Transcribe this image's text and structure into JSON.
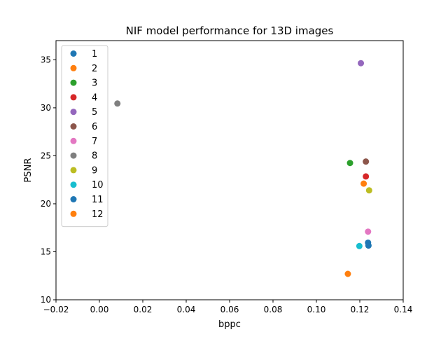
{
  "chart_data": {
    "type": "scatter",
    "title": "NIF model performance for 13D images",
    "xlabel": "bppc",
    "ylabel": "PSNR",
    "xlim": [
      -0.02,
      0.14
    ],
    "ylim": [
      10,
      37
    ],
    "xticks": [
      -0.02,
      0.0,
      0.02,
      0.04,
      0.06,
      0.08,
      0.1,
      0.12,
      0.14
    ],
    "xtick_labels": [
      "−0.02",
      "0.00",
      "0.02",
      "0.04",
      "0.06",
      "0.08",
      "0.10",
      "0.12",
      "0.14"
    ],
    "yticks": [
      10,
      15,
      20,
      25,
      30,
      35
    ],
    "ytick_labels": [
      "10",
      "15",
      "20",
      "25",
      "30",
      "35"
    ],
    "grid": false,
    "legend_position": "top-left",
    "series": [
      {
        "name": "1",
        "color": "#1f77b4",
        "x": 0.1238,
        "y": 15.95
      },
      {
        "name": "2",
        "color": "#ff7f0e",
        "x": 0.1218,
        "y": 22.1
      },
      {
        "name": "3",
        "color": "#2ca02c",
        "x": 0.1155,
        "y": 24.25
      },
      {
        "name": "4",
        "color": "#d62728",
        "x": 0.1228,
        "y": 22.85
      },
      {
        "name": "5",
        "color": "#9467bd",
        "x": 0.1205,
        "y": 34.65
      },
      {
        "name": "6",
        "color": "#8c564b",
        "x": 0.1228,
        "y": 24.4
      },
      {
        "name": "7",
        "color": "#e377c2",
        "x": 0.1238,
        "y": 17.1
      },
      {
        "name": "8",
        "color": "#7f7f7f",
        "x": 0.0083,
        "y": 30.45
      },
      {
        "name": "9",
        "color": "#bcbd22",
        "x": 0.1243,
        "y": 21.4
      },
      {
        "name": "10",
        "color": "#17becf",
        "x": 0.1198,
        "y": 15.6
      },
      {
        "name": "11",
        "color": "#1f77b4",
        "x": 0.124,
        "y": 15.65
      },
      {
        "name": "12",
        "color": "#ff7f0e",
        "x": 0.1145,
        "y": 12.7
      }
    ]
  }
}
